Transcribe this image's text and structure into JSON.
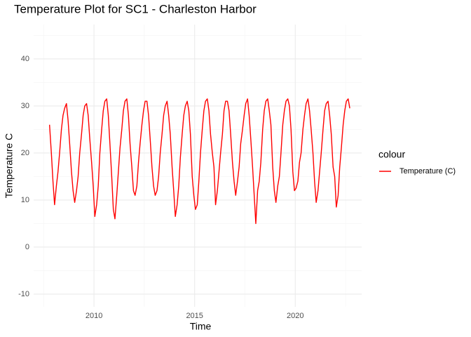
{
  "chart_data": {
    "type": "line",
    "title": "Temperature Plot for SC1 - Charleston Harbor",
    "x_label": "Time",
    "y_label": "Temperature C",
    "legend_title": "colour",
    "legend_position": "right",
    "grid": true,
    "xlim": [
      2007.0,
      2023.3
    ],
    "xticks": [
      2010,
      2015,
      2020
    ],
    "x_minor_grid": [
      2007.5,
      2012.5,
      2017.5,
      2022.5
    ],
    "ylim": [
      -12.7,
      47.3
    ],
    "yticks": [
      -10,
      0,
      10,
      20,
      30,
      40
    ],
    "y_minor_grid": [
      -5,
      5,
      15,
      25,
      35,
      45
    ],
    "x": [
      2007.79,
      2007.88,
      2007.96,
      2008.04,
      2008.13,
      2008.21,
      2008.29,
      2008.38,
      2008.46,
      2008.54,
      2008.63,
      2008.71,
      2008.79,
      2008.88,
      2008.96,
      2009.04,
      2009.13,
      2009.21,
      2009.29,
      2009.38,
      2009.46,
      2009.54,
      2009.63,
      2009.71,
      2009.79,
      2009.88,
      2009.96,
      2010.04,
      2010.13,
      2010.21,
      2010.29,
      2010.38,
      2010.46,
      2010.54,
      2010.63,
      2010.71,
      2010.79,
      2010.88,
      2010.96,
      2011.04,
      2011.13,
      2011.21,
      2011.29,
      2011.38,
      2011.46,
      2011.54,
      2011.63,
      2011.71,
      2011.79,
      2011.88,
      2011.96,
      2012.04,
      2012.13,
      2012.21,
      2012.29,
      2012.38,
      2012.46,
      2012.54,
      2012.63,
      2012.71,
      2012.79,
      2012.88,
      2012.96,
      2013.04,
      2013.13,
      2013.21,
      2013.29,
      2013.38,
      2013.46,
      2013.54,
      2013.63,
      2013.71,
      2013.79,
      2013.88,
      2013.96,
      2014.04,
      2014.13,
      2014.21,
      2014.29,
      2014.38,
      2014.46,
      2014.54,
      2014.63,
      2014.71,
      2014.79,
      2014.88,
      2014.96,
      2015.04,
      2015.13,
      2015.21,
      2015.29,
      2015.38,
      2015.46,
      2015.54,
      2015.63,
      2015.71,
      2015.79,
      2015.88,
      2015.96,
      2016.04,
      2016.13,
      2016.21,
      2016.29,
      2016.38,
      2016.46,
      2016.54,
      2016.63,
      2016.71,
      2016.79,
      2016.88,
      2016.96,
      2017.04,
      2017.13,
      2017.21,
      2017.29,
      2017.38,
      2017.46,
      2017.54,
      2017.63,
      2017.71,
      2017.79,
      2017.88,
      2017.96,
      2018.04,
      2018.13,
      2018.21,
      2018.29,
      2018.38,
      2018.46,
      2018.54,
      2018.63,
      2018.71,
      2018.79,
      2018.88,
      2018.96,
      2019.04,
      2019.13,
      2019.21,
      2019.29,
      2019.38,
      2019.46,
      2019.54,
      2019.63,
      2019.71,
      2019.79,
      2019.88,
      2019.96,
      2020.04,
      2020.13,
      2020.21,
      2020.29,
      2020.38,
      2020.46,
      2020.54,
      2020.63,
      2020.71,
      2020.79,
      2020.88,
      2020.96,
      2021.04,
      2021.13,
      2021.21,
      2021.29,
      2021.38,
      2021.46,
      2021.54,
      2021.63,
      2021.71,
      2021.79,
      2021.88,
      2021.96,
      2022.04,
      2022.13,
      2022.21,
      2022.29,
      2022.38,
      2022.46,
      2022.54,
      2022.63,
      2022.71
    ],
    "series": [
      {
        "name": "Temperature (C)",
        "color": "#ff0000",
        "values": [
          26,
          20,
          14,
          9,
          13,
          16,
          20,
          25,
          28,
          29.5,
          30.5,
          27,
          22,
          16,
          12,
          9.5,
          12,
          15,
          20,
          24,
          28,
          30,
          30.5,
          28,
          23,
          18,
          13,
          6.5,
          9,
          13,
          20,
          25,
          29,
          31,
          31.5,
          28,
          22,
          15,
          8,
          6,
          11,
          16,
          21,
          25,
          29,
          31,
          31.5,
          28,
          22,
          17,
          12,
          11,
          13,
          18,
          22,
          26,
          29,
          31,
          31,
          28,
          23,
          17,
          13,
          11,
          12,
          15,
          20,
          24,
          28,
          30,
          31,
          28,
          24,
          17,
          12,
          6.5,
          9,
          13,
          19,
          24,
          28,
          30,
          31,
          29,
          24,
          15,
          11,
          8,
          9,
          14,
          20,
          25,
          29,
          31,
          31.5,
          29,
          24,
          20,
          17,
          9,
          12,
          16,
          20,
          24,
          29,
          31,
          31,
          29,
          24,
          18,
          14,
          11,
          14,
          17,
          22,
          25,
          28,
          30.5,
          31.5,
          28,
          23,
          17,
          11,
          5,
          12,
          14,
          18,
          25,
          29,
          31,
          31.5,
          29,
          26,
          17,
          12,
          9.5,
          13,
          15,
          20,
          26,
          29,
          31,
          31.5,
          30,
          25,
          16,
          12,
          12.5,
          14,
          18,
          20,
          25,
          28,
          30.5,
          31.5,
          29,
          25,
          20,
          14,
          9.5,
          12,
          16,
          20,
          25,
          29,
          30.5,
          31,
          28,
          24,
          17,
          15,
          8.5,
          11,
          17,
          21,
          26,
          29,
          31,
          31.5,
          29.5
        ]
      }
    ]
  }
}
